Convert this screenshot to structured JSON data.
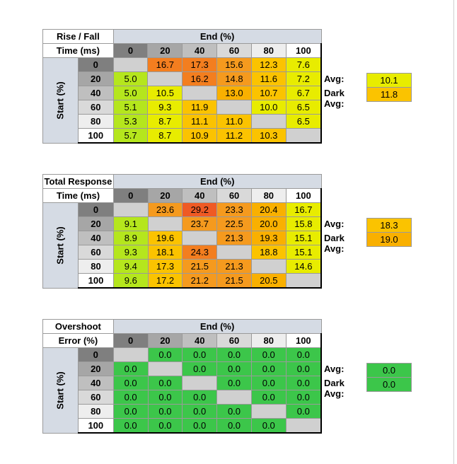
{
  "chart_data": [
    {
      "type": "heatmap",
      "title_line1": "Rise / Fall",
      "title_line2": "Time (ms)",
      "x_axis_label": "End (%)",
      "y_axis_label": "Start (%)",
      "columns": [
        "0",
        "20",
        "40",
        "60",
        "80",
        "100"
      ],
      "rows": [
        "0",
        "20",
        "40",
        "60",
        "80",
        "100"
      ],
      "cells": [
        [
          "",
          "16.7",
          "17.3",
          "15.6",
          "12.3",
          "7.6"
        ],
        [
          "5.0",
          "",
          "16.2",
          "14.8",
          "11.6",
          "7.2"
        ],
        [
          "5.0",
          "10.5",
          "",
          "13.0",
          "10.7",
          "6.7"
        ],
        [
          "5.1",
          "9.3",
          "11.9",
          "",
          "10.0",
          "6.5"
        ],
        [
          "5.3",
          "8.7",
          "11.1",
          "11.0",
          "",
          "6.5"
        ],
        [
          "5.7",
          "8.7",
          "10.9",
          "11.2",
          "10.3",
          ""
        ]
      ],
      "colors": [
        [
          "#d0d0d0",
          "#f37e1f",
          "#f37e1f",
          "#f59a1e",
          "#fbc300",
          "#e8ec00"
        ],
        [
          "#b5e61d",
          "#d0d0d0",
          "#f37e1f",
          "#f59a1e",
          "#fbc300",
          "#e8ec00"
        ],
        [
          "#b5e61d",
          "#e8ec00",
          "#d0d0d0",
          "#f9b000",
          "#fbc300",
          "#e8ec00"
        ],
        [
          "#b5e61d",
          "#e8ec00",
          "#fbc300",
          "#d0d0d0",
          "#e8ec00",
          "#e8ec00"
        ],
        [
          "#b5e61d",
          "#e8ec00",
          "#fbc300",
          "#fbc300",
          "#d0d0d0",
          "#e8ec00"
        ],
        [
          "#b5e61d",
          "#e8ec00",
          "#fbc300",
          "#fbc300",
          "#fbc300",
          "#d0d0d0"
        ]
      ],
      "avg_label": "Avg:",
      "avg_value": "10.1",
      "avg_color": "#e8ec00",
      "dark_avg_label": "Dark Avg:",
      "dark_avg_value": "11.8",
      "dark_avg_color": "#fbc300"
    },
    {
      "type": "heatmap",
      "title_line1": "Total Response",
      "title_line2": "Time (ms)",
      "x_axis_label": "End (%)",
      "y_axis_label": "Start (%)",
      "columns": [
        "0",
        "20",
        "40",
        "60",
        "80",
        "100"
      ],
      "rows": [
        "0",
        "20",
        "40",
        "60",
        "80",
        "100"
      ],
      "cells": [
        [
          "",
          "23.6",
          "29.2",
          "23.3",
          "20.4",
          "16.7"
        ],
        [
          "9.1",
          "",
          "23.7",
          "22.5",
          "20.0",
          "15.8"
        ],
        [
          "8.9",
          "19.6",
          "",
          "21.3",
          "19.3",
          "15.1"
        ],
        [
          "9.3",
          "18.1",
          "24.3",
          "",
          "18.8",
          "15.1"
        ],
        [
          "9.4",
          "17.3",
          "21.5",
          "21.3",
          "",
          "14.6"
        ],
        [
          "9.6",
          "17.2",
          "21.2",
          "21.5",
          "20.5",
          ""
        ]
      ],
      "colors": [
        [
          "#d0d0d0",
          "#f59a1e",
          "#ef5a24",
          "#f59a1e",
          "#f9b000",
          "#e8ec00"
        ],
        [
          "#b5e61d",
          "#d0d0d0",
          "#f59a1e",
          "#f59a1e",
          "#f9b000",
          "#e8ec00"
        ],
        [
          "#b5e61d",
          "#fbc300",
          "#d0d0d0",
          "#f59a1e",
          "#f9b000",
          "#e8ec00"
        ],
        [
          "#b5e61d",
          "#fbc300",
          "#f37e1f",
          "#d0d0d0",
          "#fbc300",
          "#e8ec00"
        ],
        [
          "#b5e61d",
          "#fbc300",
          "#f59a1e",
          "#f59a1e",
          "#d0d0d0",
          "#e8ec00"
        ],
        [
          "#b5e61d",
          "#fbc300",
          "#f59a1e",
          "#f59a1e",
          "#f9b000",
          "#d0d0d0"
        ]
      ],
      "avg_label": "Avg:",
      "avg_value": "18.3",
      "avg_color": "#fbc300",
      "dark_avg_label": "Dark Avg:",
      "dark_avg_value": "19.0",
      "dark_avg_color": "#f9b000"
    },
    {
      "type": "heatmap",
      "title_line1": "Overshoot",
      "title_line2": "Error (%)",
      "x_axis_label": "End (%)",
      "y_axis_label": "Start (%)",
      "columns": [
        "0",
        "20",
        "40",
        "60",
        "80",
        "100"
      ],
      "rows": [
        "0",
        "20",
        "40",
        "60",
        "80",
        "100"
      ],
      "cells": [
        [
          "",
          "0.0",
          "0.0",
          "0.0",
          "0.0",
          "0.0"
        ],
        [
          "0.0",
          "",
          "0.0",
          "0.0",
          "0.0",
          "0.0"
        ],
        [
          "0.0",
          "0.0",
          "",
          "0.0",
          "0.0",
          "0.0"
        ],
        [
          "0.0",
          "0.0",
          "0.0",
          "",
          "0.0",
          "0.0"
        ],
        [
          "0.0",
          "0.0",
          "0.0",
          "0.0",
          "",
          "0.0"
        ],
        [
          "0.0",
          "0.0",
          "0.0",
          "0.0",
          "0.0",
          ""
        ]
      ],
      "colors": [
        [
          "#d0d0d0",
          "#3cc64a",
          "#3cc64a",
          "#3cc64a",
          "#3cc64a",
          "#3cc64a"
        ],
        [
          "#3cc64a",
          "#d0d0d0",
          "#3cc64a",
          "#3cc64a",
          "#3cc64a",
          "#3cc64a"
        ],
        [
          "#3cc64a",
          "#3cc64a",
          "#d0d0d0",
          "#3cc64a",
          "#3cc64a",
          "#3cc64a"
        ],
        [
          "#3cc64a",
          "#3cc64a",
          "#3cc64a",
          "#d0d0d0",
          "#3cc64a",
          "#3cc64a"
        ],
        [
          "#3cc64a",
          "#3cc64a",
          "#3cc64a",
          "#3cc64a",
          "#d0d0d0",
          "#3cc64a"
        ],
        [
          "#3cc64a",
          "#3cc64a",
          "#3cc64a",
          "#3cc64a",
          "#3cc64a",
          "#d0d0d0"
        ]
      ],
      "avg_label": "Avg:",
      "avg_value": "0.0",
      "avg_color": "#3cc64a",
      "dark_avg_label": "Dark Avg:",
      "dark_avg_value": "0.0",
      "dark_avg_color": "#3cc64a"
    }
  ],
  "header_shades": [
    "#7f7f7f",
    "#a6a6a6",
    "#bfbfbf",
    "#d9d9d9",
    "#eeeeee",
    "#ffffff"
  ]
}
